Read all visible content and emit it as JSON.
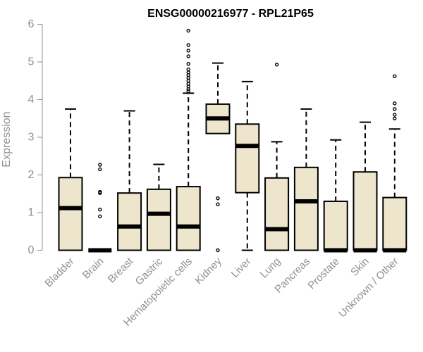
{
  "chart_data": {
    "type": "boxplot",
    "title": "ENSG00000216977 - RPL21P65",
    "xlabel": "",
    "ylabel": "Expression",
    "ylim": [
      0,
      6
    ],
    "yticks": [
      "0",
      "1",
      "2",
      "3",
      "4",
      "5",
      "6"
    ],
    "box_fill": "#ede6cc",
    "stroke_color": "#000000",
    "axis_color": "#909090",
    "categories": [
      "Bladder",
      "Brain",
      "Breast",
      "Gastric",
      "Hematopoietic cells",
      "Kidney",
      "Liver",
      "Lung",
      "Pancreas",
      "Prostate",
      "Skin",
      "Unknown / Other"
    ],
    "boxes": [
      {
        "name": "Bladder",
        "whisker_low": 0,
        "q1": 0,
        "median": 1.12,
        "q3": 1.93,
        "whisker_high": 3.75,
        "outliers": []
      },
      {
        "name": "Brain",
        "whisker_low": 0,
        "q1": 0,
        "median": 0,
        "q3": 0,
        "whisker_high": 0,
        "outliers": [
          0.9,
          1.08,
          1.52,
          1.55,
          2.15,
          2.27
        ]
      },
      {
        "name": "Breast",
        "whisker_low": 0,
        "q1": 0,
        "median": 0.63,
        "q3": 1.52,
        "whisker_high": 3.7,
        "outliers": []
      },
      {
        "name": "Gastric",
        "whisker_low": 0,
        "q1": 0,
        "median": 0.97,
        "q3": 1.62,
        "whisker_high": 2.28,
        "outliers": []
      },
      {
        "name": "Hematopoietic cells",
        "whisker_low": 0,
        "q1": 0,
        "median": 0.63,
        "q3": 1.69,
        "whisker_high": 4.17,
        "outliers": [
          4.22,
          4.28,
          4.35,
          4.42,
          4.5,
          4.58,
          4.65,
          4.72,
          4.8,
          4.95,
          5.15,
          5.3,
          5.45,
          5.83
        ]
      },
      {
        "name": "Kidney",
        "whisker_low": 3.1,
        "q1": 3.1,
        "median": 3.5,
        "q3": 3.88,
        "whisker_high": 4.97,
        "outliers": [
          0,
          1.22,
          1.38
        ]
      },
      {
        "name": "Liver",
        "whisker_low": 0,
        "q1": 1.53,
        "median": 2.77,
        "q3": 3.35,
        "whisker_high": 4.48,
        "outliers": []
      },
      {
        "name": "Lung",
        "whisker_low": 0,
        "q1": 0,
        "median": 0.56,
        "q3": 1.92,
        "whisker_high": 2.88,
        "outliers": [
          4.93
        ]
      },
      {
        "name": "Pancreas",
        "whisker_low": 0,
        "q1": 0,
        "median": 1.3,
        "q3": 2.2,
        "whisker_high": 3.75,
        "outliers": []
      },
      {
        "name": "Prostate",
        "whisker_low": 0,
        "q1": 0,
        "median": 0,
        "q3": 1.3,
        "whisker_high": 2.93,
        "outliers": []
      },
      {
        "name": "Skin",
        "whisker_low": 0,
        "q1": 0,
        "median": 0,
        "q3": 2.08,
        "whisker_high": 3.4,
        "outliers": []
      },
      {
        "name": "Unknown / Other",
        "whisker_low": 0,
        "q1": 0,
        "median": 0,
        "q3": 1.4,
        "whisker_high": 3.22,
        "outliers": [
          3.5,
          3.6,
          3.75,
          3.9,
          4.62
        ]
      }
    ]
  }
}
